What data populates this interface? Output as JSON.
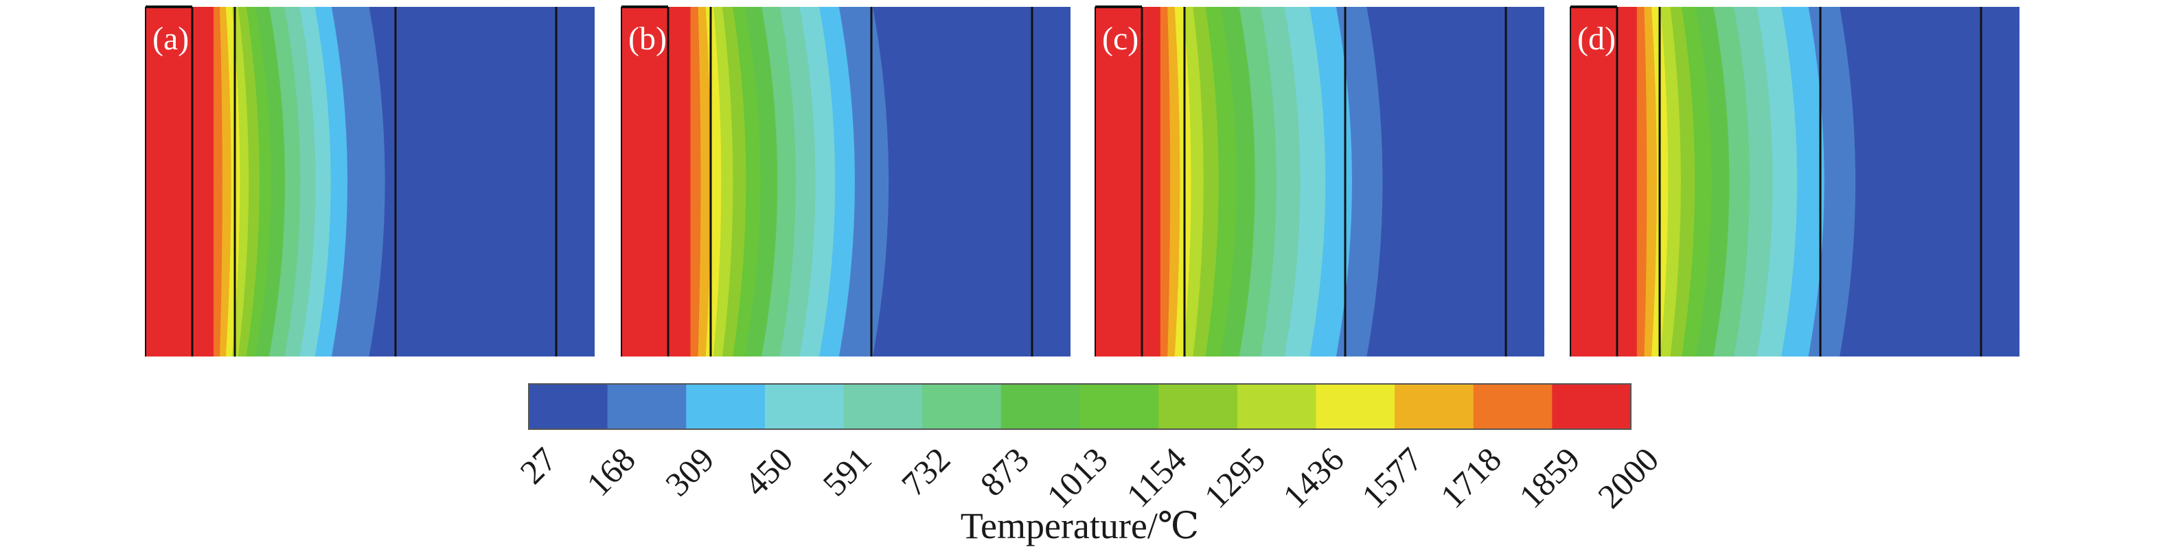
{
  "panels": [
    {
      "label": "(a)",
      "bands": [
        30,
        68,
        10,
        10,
        10,
        10,
        13,
        14,
        20,
        22,
        22,
        22,
        24,
        54,
        66,
        136,
        68,
        6,
        42
      ],
      "radial_lines": [
        68,
        130,
        364,
        598
      ]
    },
    {
      "label": "(b)",
      "bands": [
        30,
        68,
        12,
        12,
        12,
        14,
        16,
        18,
        24,
        26,
        28,
        28,
        28,
        48,
        60,
        100,
        64,
        6,
        44
      ],
      "radial_lines": [
        68,
        130,
        364,
        598
      ]
    },
    {
      "label": "(c)",
      "bands": [
        30,
        68,
        12,
        12,
        14,
        16,
        20,
        24,
        28,
        32,
        36,
        38,
        40,
        46,
        60,
        84,
        66,
        6,
        44
      ],
      "radial_lines": [
        68,
        130,
        364,
        598
      ]
    },
    {
      "label": "(d)",
      "bands": [
        30,
        68,
        12,
        12,
        14,
        16,
        18,
        22,
        26,
        30,
        34,
        36,
        40,
        46,
        60,
        78,
        70,
        6,
        44
      ],
      "radial_lines": [
        68,
        130,
        364,
        598
      ]
    }
  ],
  "colorbar": {
    "colors": [
      "#3553ae",
      "#4a7dc9",
      "#51bff0",
      "#76d4d6",
      "#73cfad",
      "#6dcc86",
      "#61c24a",
      "#69c53a",
      "#8fcb2e",
      "#b7db2e",
      "#ebea2c",
      "#eeb121",
      "#ef7624",
      "#e62a2b"
    ],
    "ticks": [
      "27",
      "168",
      "309",
      "450",
      "591",
      "732",
      "873",
      "1013",
      "1154",
      "1295",
      "1436",
      "1577",
      "1718",
      "1859",
      "2000"
    ],
    "title": "Temperature/℃"
  }
}
